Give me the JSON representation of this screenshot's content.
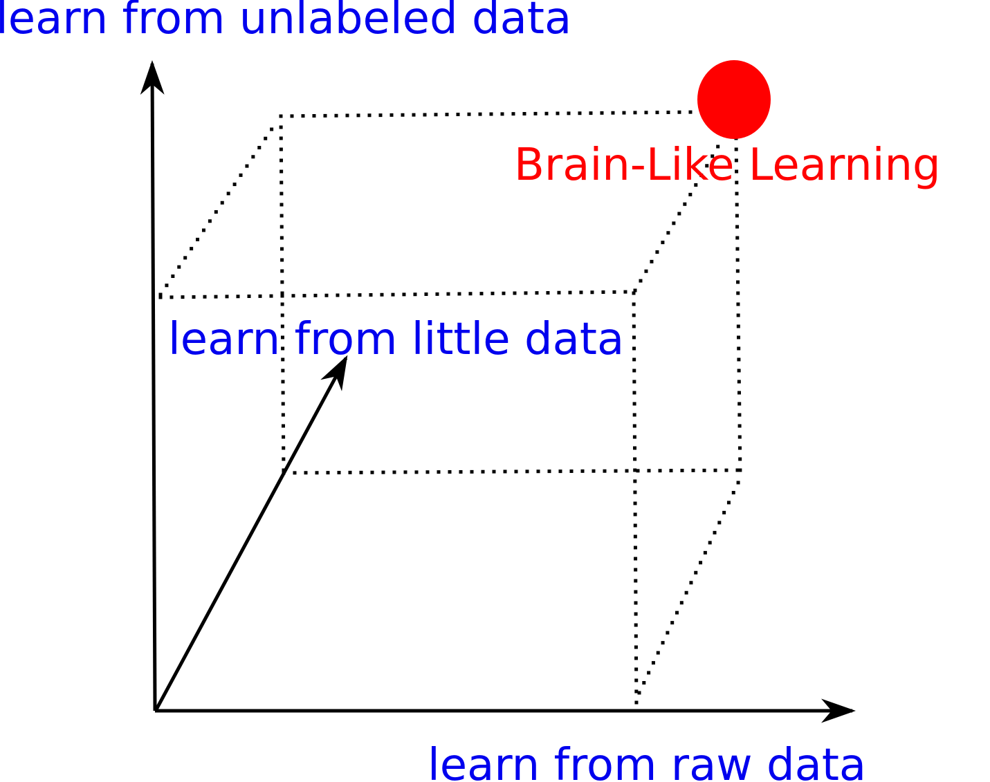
{
  "axes": {
    "vertical_label": "learn from unlabeled data",
    "depth_label": "learn from little data",
    "horizontal_label": "learn from raw data"
  },
  "target": {
    "label": "Brain-Like Learning"
  },
  "colors": {
    "axis_label": "#0000ee",
    "target": "#ff0000",
    "lines": "#000000"
  }
}
